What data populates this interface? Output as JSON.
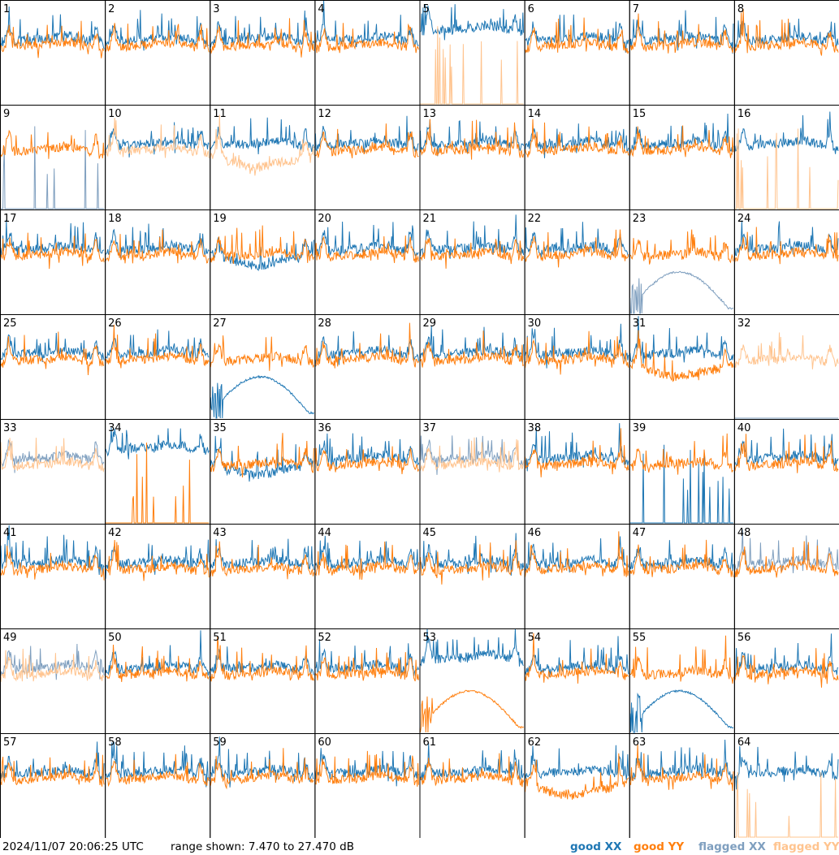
{
  "footer": {
    "timestamp": "2024/11/07 20:06:25 UTC",
    "range": "range shown: 7.470 to 27.470 dB"
  },
  "legend": {
    "good_xx": "good XX",
    "good_yy": "good YY",
    "flagged_xx": "flagged XX",
    "flagged_yy": "flagged YY"
  },
  "colors": {
    "good_xx": "#1f77b4",
    "good_yy": "#ff7f0e",
    "flagged_xx": "#7f9fbf",
    "flagged_yy": "#ffc48f"
  },
  "chart_data": {
    "type": "line",
    "unit": "dB",
    "ylim": [
      7.47,
      27.47
    ],
    "panels": [
      {
        "label": "1",
        "xx": "good",
        "yy": "good",
        "xx_shape": "normal",
        "yy_shape": "normal"
      },
      {
        "label": "2",
        "xx": "good",
        "yy": "good",
        "xx_shape": "normal",
        "yy_shape": "normal"
      },
      {
        "label": "3",
        "xx": "good",
        "yy": "good",
        "xx_shape": "normal",
        "yy_shape": "normal"
      },
      {
        "label": "4",
        "xx": "good",
        "yy": "good",
        "xx_shape": "normal",
        "yy_shape": "normal"
      },
      {
        "label": "5",
        "xx": "good",
        "yy": "flagged",
        "xx_shape": "high",
        "yy_shape": "spikes"
      },
      {
        "label": "6",
        "xx": "good",
        "yy": "good",
        "xx_shape": "normal",
        "yy_shape": "normal"
      },
      {
        "label": "7",
        "xx": "good",
        "yy": "good",
        "xx_shape": "normal",
        "yy_shape": "normal"
      },
      {
        "label": "8",
        "xx": "good",
        "yy": "good",
        "xx_shape": "normal",
        "yy_shape": "normal"
      },
      {
        "label": "9",
        "xx": "flagged",
        "yy": "good",
        "xx_shape": "spikes",
        "yy_shape": "normal"
      },
      {
        "label": "10",
        "xx": "good",
        "yy": "flagged",
        "xx_shape": "normal",
        "yy_shape": "normal"
      },
      {
        "label": "11",
        "xx": "good",
        "yy": "flagged",
        "xx_shape": "normal",
        "yy_shape": "low"
      },
      {
        "label": "12",
        "xx": "good",
        "yy": "good",
        "xx_shape": "normal",
        "yy_shape": "normal"
      },
      {
        "label": "13",
        "xx": "good",
        "yy": "good",
        "xx_shape": "normal",
        "yy_shape": "normal"
      },
      {
        "label": "14",
        "xx": "good",
        "yy": "good",
        "xx_shape": "normal",
        "yy_shape": "normal"
      },
      {
        "label": "15",
        "xx": "good",
        "yy": "good",
        "xx_shape": "normal",
        "yy_shape": "normal"
      },
      {
        "label": "16",
        "xx": "good",
        "yy": "flagged",
        "xx_shape": "normal",
        "yy_shape": "spikes"
      },
      {
        "label": "17",
        "xx": "good",
        "yy": "good",
        "xx_shape": "normal",
        "yy_shape": "normal"
      },
      {
        "label": "18",
        "xx": "good",
        "yy": "good",
        "xx_shape": "normal",
        "yy_shape": "normal"
      },
      {
        "label": "19",
        "xx": "good",
        "yy": "good",
        "xx_shape": "low",
        "yy_shape": "normal"
      },
      {
        "label": "20",
        "xx": "good",
        "yy": "good",
        "xx_shape": "normal",
        "yy_shape": "normal"
      },
      {
        "label": "21",
        "xx": "good",
        "yy": "good",
        "xx_shape": "normal",
        "yy_shape": "normal"
      },
      {
        "label": "22",
        "xx": "good",
        "yy": "good",
        "xx_shape": "normal",
        "yy_shape": "normal"
      },
      {
        "label": "23",
        "xx": "flagged",
        "yy": "good",
        "xx_shape": "dead",
        "yy_shape": "normal"
      },
      {
        "label": "24",
        "xx": "good",
        "yy": "good",
        "xx_shape": "normal",
        "yy_shape": "normal"
      },
      {
        "label": "25",
        "xx": "good",
        "yy": "good",
        "xx_shape": "normal",
        "yy_shape": "normal"
      },
      {
        "label": "26",
        "xx": "good",
        "yy": "good",
        "xx_shape": "normal",
        "yy_shape": "normal"
      },
      {
        "label": "27",
        "xx": "good",
        "yy": "good",
        "xx_shape": "dead",
        "yy_shape": "normal"
      },
      {
        "label": "28",
        "xx": "good",
        "yy": "good",
        "xx_shape": "normal",
        "yy_shape": "normal"
      },
      {
        "label": "29",
        "xx": "good",
        "yy": "good",
        "xx_shape": "normal",
        "yy_shape": "normal"
      },
      {
        "label": "30",
        "xx": "good",
        "yy": "good",
        "xx_shape": "normal",
        "yy_shape": "normal"
      },
      {
        "label": "31",
        "xx": "good",
        "yy": "good",
        "xx_shape": "normal",
        "yy_shape": "low"
      },
      {
        "label": "32",
        "xx": "flagged",
        "yy": "flagged",
        "xx_shape": "none",
        "yy_shape": "normal"
      },
      {
        "label": "33",
        "xx": "flagged",
        "yy": "flagged",
        "xx_shape": "normal",
        "yy_shape": "normal"
      },
      {
        "label": "34",
        "xx": "good",
        "yy": "good",
        "xx_shape": "high",
        "yy_shape": "spikes"
      },
      {
        "label": "35",
        "xx": "good",
        "yy": "good",
        "xx_shape": "low",
        "yy_shape": "normal"
      },
      {
        "label": "36",
        "xx": "good",
        "yy": "good",
        "xx_shape": "normal",
        "yy_shape": "normal"
      },
      {
        "label": "37",
        "xx": "flagged",
        "yy": "flagged",
        "xx_shape": "normal",
        "yy_shape": "normal"
      },
      {
        "label": "38",
        "xx": "good",
        "yy": "good",
        "xx_shape": "normal",
        "yy_shape": "normal"
      },
      {
        "label": "39",
        "xx": "good",
        "yy": "good",
        "xx_shape": "spikes",
        "yy_shape": "normal"
      },
      {
        "label": "40",
        "xx": "good",
        "yy": "good",
        "xx_shape": "normal",
        "yy_shape": "normal"
      },
      {
        "label": "41",
        "xx": "good",
        "yy": "good",
        "xx_shape": "normal",
        "yy_shape": "normal"
      },
      {
        "label": "42",
        "xx": "good",
        "yy": "good",
        "xx_shape": "normal",
        "yy_shape": "normal"
      },
      {
        "label": "43",
        "xx": "good",
        "yy": "good",
        "xx_shape": "normal",
        "yy_shape": "normal"
      },
      {
        "label": "44",
        "xx": "good",
        "yy": "good",
        "xx_shape": "normal",
        "yy_shape": "normal"
      },
      {
        "label": "45",
        "xx": "good",
        "yy": "good",
        "xx_shape": "normal",
        "yy_shape": "normal"
      },
      {
        "label": "46",
        "xx": "good",
        "yy": "good",
        "xx_shape": "normal",
        "yy_shape": "normal"
      },
      {
        "label": "47",
        "xx": "good",
        "yy": "good",
        "xx_shape": "normal",
        "yy_shape": "normal"
      },
      {
        "label": "48",
        "xx": "flagged",
        "yy": "good",
        "xx_shape": "normal",
        "yy_shape": "normal"
      },
      {
        "label": "49",
        "xx": "flagged",
        "yy": "flagged",
        "xx_shape": "normal",
        "yy_shape": "normal"
      },
      {
        "label": "50",
        "xx": "good",
        "yy": "good",
        "xx_shape": "normal",
        "yy_shape": "normal"
      },
      {
        "label": "51",
        "xx": "good",
        "yy": "good",
        "xx_shape": "normal",
        "yy_shape": "normal"
      },
      {
        "label": "52",
        "xx": "good",
        "yy": "good",
        "xx_shape": "normal",
        "yy_shape": "normal"
      },
      {
        "label": "53",
        "xx": "good",
        "yy": "good",
        "xx_shape": "high",
        "yy_shape": "dead"
      },
      {
        "label": "54",
        "xx": "good",
        "yy": "good",
        "xx_shape": "normal",
        "yy_shape": "normal"
      },
      {
        "label": "55",
        "xx": "good",
        "yy": "good",
        "xx_shape": "dead",
        "yy_shape": "normal"
      },
      {
        "label": "56",
        "xx": "good",
        "yy": "good",
        "xx_shape": "normal",
        "yy_shape": "normal"
      },
      {
        "label": "57",
        "xx": "good",
        "yy": "good",
        "xx_shape": "normal",
        "yy_shape": "normal"
      },
      {
        "label": "58",
        "xx": "good",
        "yy": "good",
        "xx_shape": "normal",
        "yy_shape": "normal"
      },
      {
        "label": "59",
        "xx": "good",
        "yy": "good",
        "xx_shape": "normal",
        "yy_shape": "normal"
      },
      {
        "label": "60",
        "xx": "good",
        "yy": "good",
        "xx_shape": "normal",
        "yy_shape": "normal"
      },
      {
        "label": "61",
        "xx": "good",
        "yy": "good",
        "xx_shape": "normal",
        "yy_shape": "normal"
      },
      {
        "label": "62",
        "xx": "good",
        "yy": "good",
        "xx_shape": "normal",
        "yy_shape": "low"
      },
      {
        "label": "63",
        "xx": "good",
        "yy": "good",
        "xx_shape": "normal",
        "yy_shape": "normal"
      },
      {
        "label": "64",
        "xx": "good",
        "yy": "flagged",
        "xx_shape": "normal",
        "yy_shape": "spikes"
      }
    ]
  }
}
